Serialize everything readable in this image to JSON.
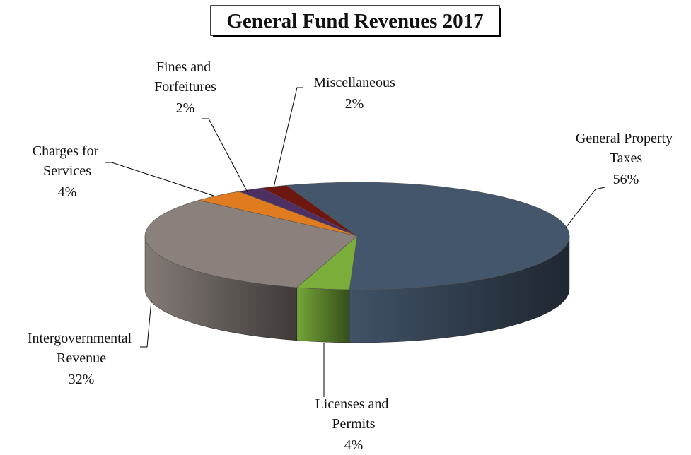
{
  "chart_data": {
    "type": "pie3d",
    "title": "General Fund Revenues 2017",
    "categories": [
      "General Property Taxes",
      "Licenses and Permits",
      "Intergovernmental Revenue",
      "Charges for Services",
      "Fines and Forfeitures",
      "Miscellaneous"
    ],
    "values": [
      56,
      4,
      32,
      4,
      2,
      2
    ],
    "value_labels": [
      "56%",
      "4%",
      "32%",
      "4%",
      "2%",
      "2%"
    ],
    "colors": [
      "#44566c",
      "#7aad3a",
      "#8a817c",
      "#e07b20",
      "#4e2f63",
      "#6e1710"
    ]
  }
}
